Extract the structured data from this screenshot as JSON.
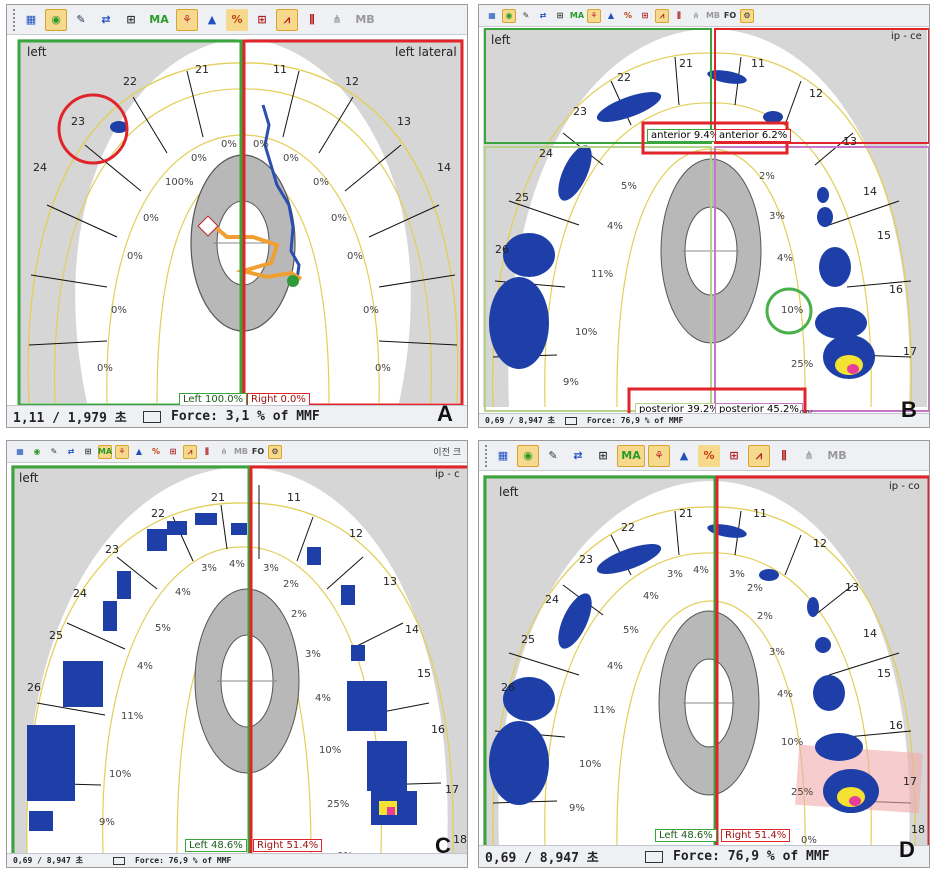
{
  "panels": [
    {
      "id": "A",
      "letter": "A",
      "region_left": "left",
      "region_right": "left lateral",
      "left_pct": "Left 100.0%",
      "right_pct": "Right 0.0%",
      "status_time": "1,11 / 1,979 초",
      "status_force": "Force: 3,1 % of MMF",
      "teeth_left": [
        "21",
        "22",
        "23",
        "24"
      ],
      "teeth_right": [
        "11",
        "12",
        "13",
        "14"
      ],
      "percent_labels": [
        "0%",
        "0%",
        "0%",
        "100%",
        "0%",
        "0%",
        "0%",
        "0%",
        "0%",
        "0%",
        "0%",
        "0%",
        "0%",
        "0%"
      ]
    },
    {
      "id": "B",
      "letter": "B",
      "region_left": "left",
      "region_right": "ip - ce",
      "anterior_left": "anterior 9.4%",
      "anterior_right": "anterior 6.2%",
      "posterior_left": "posterior 39.2%",
      "posterior_right": "posterior 45.2%",
      "status_time": "0,69 / 8,947 초",
      "status_force": "Force: 76,9 % of MMF",
      "teeth_left": [
        "21",
        "22",
        "23",
        "24",
        "25",
        "26"
      ],
      "teeth_right": [
        "11",
        "12",
        "13",
        "14",
        "15",
        "16",
        "17"
      ],
      "percent_labels": [
        "5%",
        "4%",
        "11%",
        "10%",
        "9%",
        "2%",
        "3%",
        "4%",
        "10%",
        "25%",
        "0%"
      ]
    },
    {
      "id": "C",
      "letter": "C",
      "region_left": "left",
      "region_right": "ip - c",
      "title_snippet": "이전 크",
      "left_pct": "Left 48.6%",
      "right_pct": "Right 51.4%",
      "status_time": "0,69 / 8,947 초",
      "status_force": "Force: 76,9 % of MMF",
      "teeth_left": [
        "21",
        "22",
        "23",
        "24",
        "25",
        "26"
      ],
      "teeth_right": [
        "11",
        "12",
        "13",
        "14",
        "15",
        "16",
        "17",
        "18"
      ],
      "percent_labels": [
        "3%",
        "4%",
        "3%",
        "2%",
        "4%",
        "2%",
        "5%",
        "3%",
        "4%",
        "4%",
        "11%",
        "10%",
        "10%",
        "9%",
        "25%",
        "0%"
      ]
    },
    {
      "id": "D",
      "letter": "D",
      "region_left": "left",
      "region_right": "ip - co",
      "left_pct": "Left 48.6%",
      "right_pct": "Right 51.4%",
      "status_time": "0,69 / 8,947 초",
      "status_force": "Force: 76,9 % of MMF",
      "teeth_left": [
        "21",
        "22",
        "23",
        "24",
        "25",
        "26"
      ],
      "teeth_right": [
        "11",
        "12",
        "13",
        "14",
        "15",
        "16",
        "17",
        "18"
      ],
      "percent_labels": [
        "3%",
        "4%",
        "3%",
        "2%",
        "4%",
        "2%",
        "5%",
        "3%",
        "4%",
        "4%",
        "11%",
        "10%",
        "10%",
        "9%",
        "25%",
        "0%"
      ]
    }
  ],
  "toolbar": {
    "ma_label": "MA",
    "mb_label": "MB",
    "fo_label": "FO",
    "pct_label": "%"
  },
  "colors": {
    "green_box": "#3aa53a",
    "red_box": "#e0242a",
    "arch_line": "#e2cf5a",
    "pressure_blue": "#1e3fa8",
    "pink_box": "#f0aaaa",
    "trajectory_blue": "#2a4fb0",
    "trajectory_orange": "#f0a030"
  }
}
